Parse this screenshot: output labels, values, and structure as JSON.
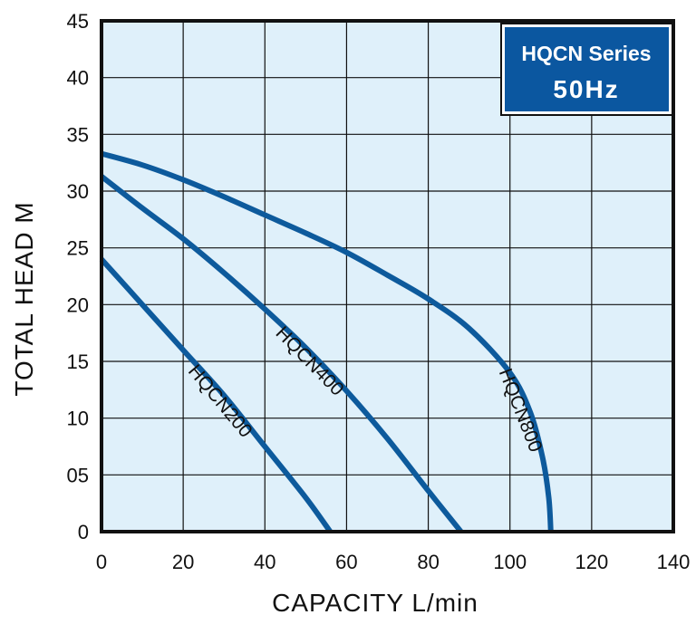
{
  "chart_data": {
    "type": "line",
    "title": "HQCN Series",
    "subtitle": "50Hz",
    "xlabel": "CAPACITY L/min",
    "ylabel": "TOTAL HEAD M",
    "xlim": [
      0,
      140
    ],
    "ylim": [
      0,
      45
    ],
    "grid": true,
    "xticks": [
      0,
      20,
      40,
      60,
      80,
      100,
      120,
      140
    ],
    "yticks": [
      0,
      5,
      10,
      15,
      20,
      25,
      30,
      35,
      40,
      45
    ],
    "x_tick_labels": [
      "0",
      "20",
      "40",
      "60",
      "80",
      "100",
      "120",
      "140"
    ],
    "y_tick_labels": [
      "0",
      "05",
      "10",
      "15",
      "20",
      "25",
      "30",
      "35",
      "40",
      "45"
    ],
    "colors": {
      "plot_background": "#dff0fa",
      "curve": "#0d5a9c",
      "title_box": "#0b57a0",
      "grid": "#111111"
    },
    "series": [
      {
        "name": "HQCN200",
        "x": [
          0,
          10,
          20,
          30,
          40,
          50,
          56
        ],
        "y": [
          24,
          20,
          16,
          12,
          7.5,
          3,
          0
        ]
      },
      {
        "name": "HQCN400",
        "x": [
          0,
          10,
          20,
          30,
          40,
          50,
          60,
          70,
          80,
          88
        ],
        "y": [
          31.3,
          28.5,
          25.8,
          22.8,
          19.6,
          16.2,
          12.4,
          8.2,
          3.6,
          0
        ]
      },
      {
        "name": "HQCN800",
        "x": [
          0,
          10,
          20,
          30,
          40,
          50,
          60,
          70,
          80,
          90,
          100,
          105,
          108,
          109.5,
          110
        ],
        "y": [
          33.3,
          32.3,
          31.0,
          29.5,
          27.9,
          26.3,
          24.6,
          22.6,
          20.5,
          17.9,
          14.0,
          10.5,
          6.5,
          3.0,
          0
        ]
      }
    ]
  }
}
